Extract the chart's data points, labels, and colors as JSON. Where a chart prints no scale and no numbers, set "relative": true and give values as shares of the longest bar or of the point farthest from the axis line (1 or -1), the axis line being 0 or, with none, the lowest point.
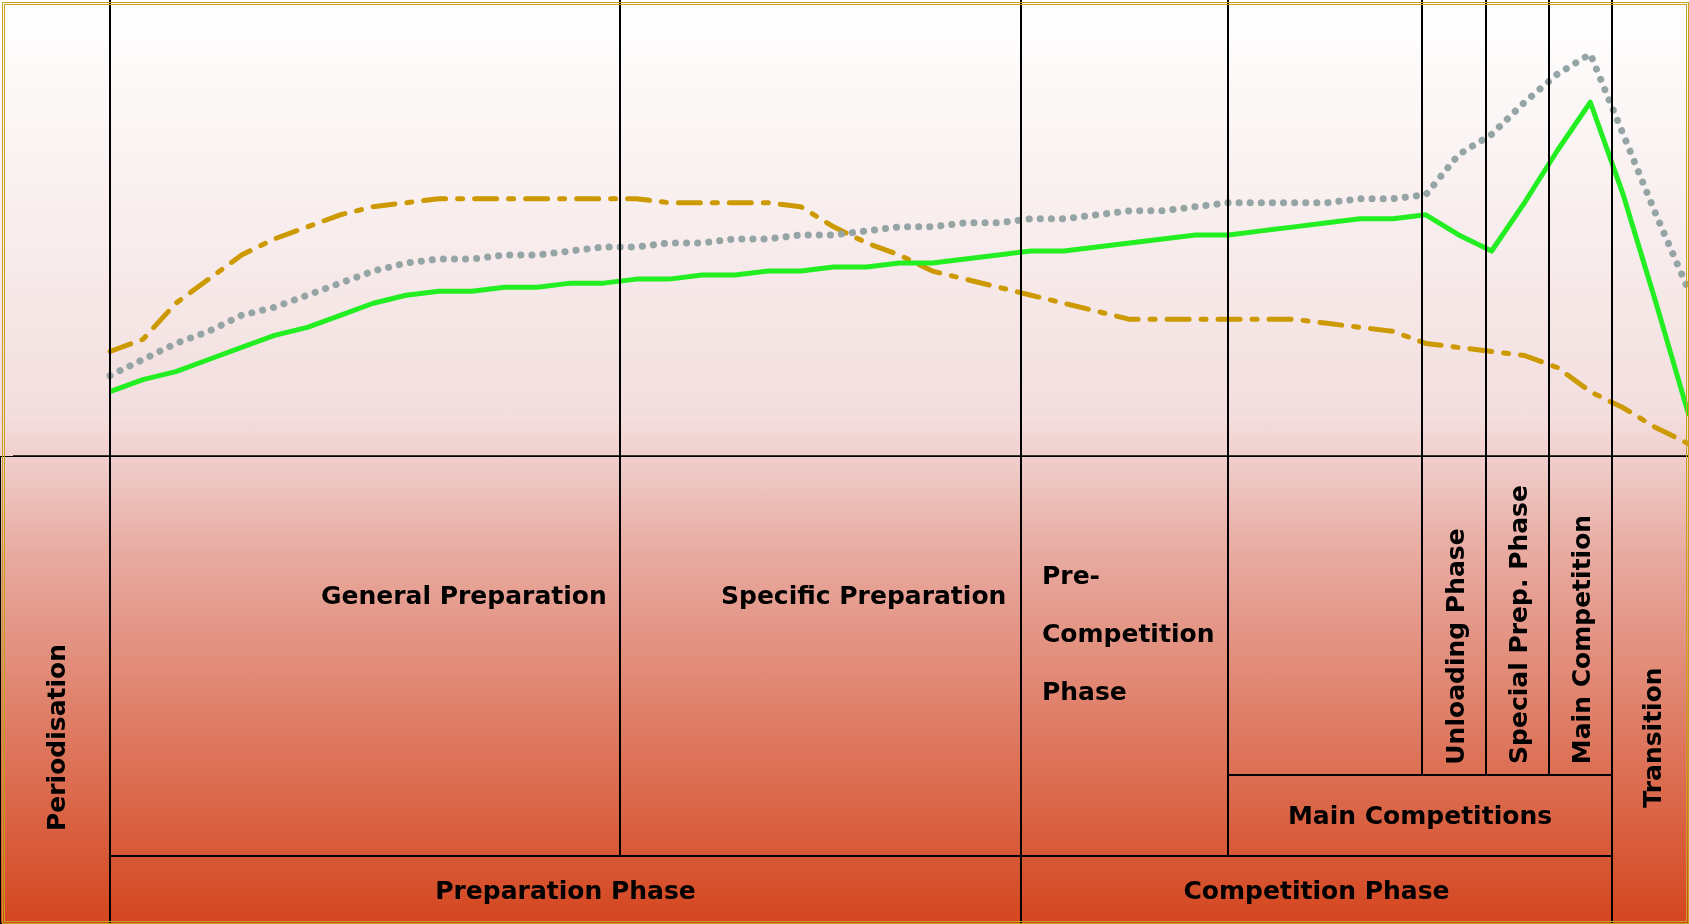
{
  "chart_data": {
    "type": "line",
    "relative": true,
    "marker": "none",
    "categories": [
      null,
      null,
      null,
      null,
      null,
      null,
      null,
      null,
      null,
      null,
      null,
      null,
      null,
      null,
      null,
      null,
      null,
      null,
      null,
      null,
      null,
      null,
      null,
      null,
      null,
      null,
      null,
      null,
      null,
      null,
      null,
      null,
      null,
      null,
      null,
      null,
      null,
      null,
      null,
      null,
      null,
      null,
      null,
      null,
      null,
      null,
      null,
      null,
      null
    ],
    "series": [
      {
        "color": "#22ee22",
        "line_style": "solid",
        "values": [
          0.16,
          0.19,
          0.21,
          0.24,
          0.27,
          0.3,
          0.32,
          0.35,
          0.38,
          0.4,
          0.41,
          0.41,
          0.42,
          0.42,
          0.43,
          0.43,
          0.44,
          0.44,
          0.45,
          0.45,
          0.46,
          0.46,
          0.47,
          0.47,
          0.48,
          0.48,
          0.49,
          0.5,
          0.51,
          0.51,
          0.52,
          0.53,
          0.54,
          0.55,
          0.55,
          0.56,
          0.57,
          0.58,
          0.59,
          0.59,
          0.6,
          0.55,
          0.51,
          0.63,
          0.76,
          0.88,
          0.65,
          0.38,
          0.1
        ]
      },
      {
        "color": "#95a5a6",
        "line_style": "dotted",
        "values": [
          0.2,
          0.24,
          0.28,
          0.31,
          0.35,
          0.37,
          0.4,
          0.43,
          0.46,
          0.48,
          0.49,
          0.49,
          0.5,
          0.5,
          0.51,
          0.52,
          0.52,
          0.53,
          0.53,
          0.54,
          0.54,
          0.55,
          0.55,
          0.56,
          0.57,
          0.57,
          0.58,
          0.58,
          0.59,
          0.59,
          0.6,
          0.61,
          0.61,
          0.62,
          0.63,
          0.63,
          0.63,
          0.63,
          0.64,
          0.64,
          0.65,
          0.75,
          0.8,
          0.88,
          0.95,
          1.0,
          0.8,
          0.6,
          0.41
        ]
      },
      {
        "color": "#cc9900",
        "line_style": "dashed",
        "values": [
          0.26,
          0.29,
          0.38,
          0.44,
          0.5,
          0.54,
          0.57,
          0.6,
          0.62,
          0.63,
          0.64,
          0.64,
          0.64,
          0.64,
          0.64,
          0.64,
          0.64,
          0.63,
          0.63,
          0.63,
          0.63,
          0.62,
          0.57,
          0.53,
          0.5,
          0.46,
          0.44,
          0.42,
          0.4,
          0.38,
          0.36,
          0.34,
          0.34,
          0.34,
          0.34,
          0.34,
          0.34,
          0.33,
          0.32,
          0.31,
          0.28,
          0.27,
          0.26,
          0.25,
          0.22,
          0.16,
          0.12,
          0.07,
          0.03
        ]
      }
    ],
    "annotations": [
      "Periodisation",
      "General Preparation",
      "Specific Preparation",
      "Pre-Competition Phase",
      "Unloading Phase",
      "Special Prep. Phase",
      "Main Competition",
      "Transition",
      "Main Competitions",
      "Preparation Phase",
      "Competition Phase"
    ]
  }
}
